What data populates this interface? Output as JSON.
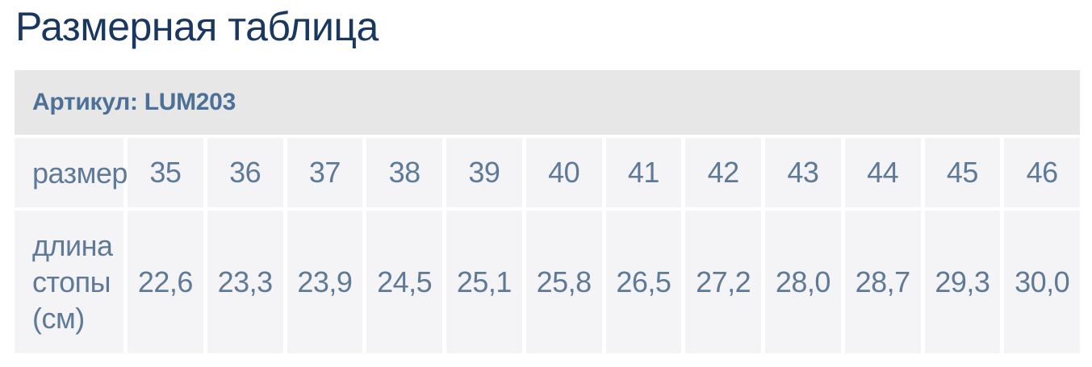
{
  "page": {
    "title": "Размерная таблица"
  },
  "table": {
    "article": "Артикул: LUM203",
    "rows": [
      {
        "label": "размер",
        "values": [
          "35",
          "36",
          "37",
          "38",
          "39",
          "40",
          "41",
          "42",
          "43",
          "44",
          "45",
          "46"
        ]
      },
      {
        "label": "длина стопы (см)",
        "values": [
          "22,6",
          "23,3",
          "23,9",
          "24,5",
          "25,1",
          "25,8",
          "26,5",
          "27,2",
          "28,0",
          "28,7",
          "29,3",
          "30,0"
        ]
      }
    ]
  },
  "colors": {
    "title_text": "#19375f",
    "article_text": "#4d7096",
    "cell_text": "#5e7a96",
    "article_bar_bg": "#e7e7e7",
    "cell_bg": "#f4f4f6",
    "page_bg": "#ffffff"
  }
}
